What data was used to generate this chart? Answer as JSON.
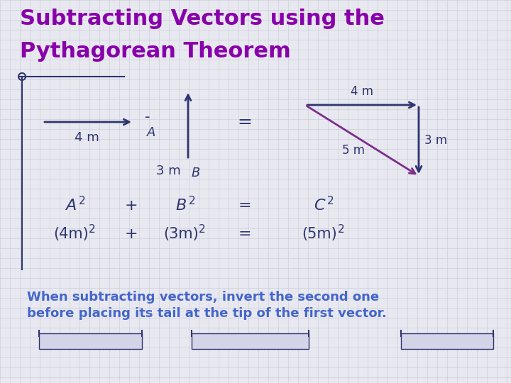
{
  "title_line1": "Subtracting Vectors using the",
  "title_line2": "Pythagorean Theorem",
  "title_color": "#8800AA",
  "bg_color": "#E8E8F0",
  "grid_color": "#C8C8D8",
  "arrow_color": "#2F3570",
  "purple_color": "#7B2D8B",
  "blue_text_color": "#4466CC",
  "dark_text_color": "#2F3570",
  "bottom_text_line1": "When subtracting vectors, invert the second one",
  "bottom_text_line2": "before placing its tail at the tip of the first vector."
}
